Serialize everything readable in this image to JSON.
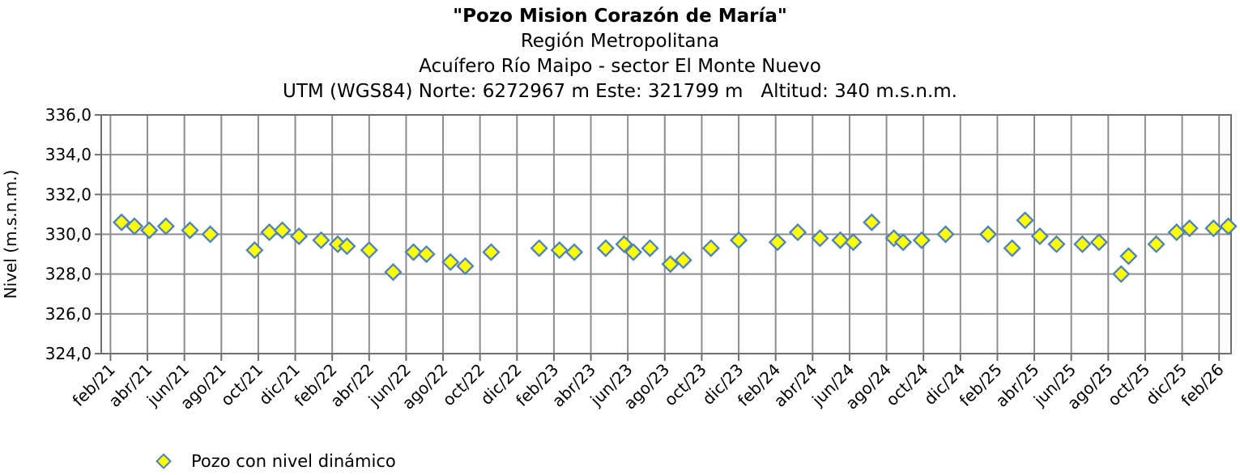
{
  "colors": {
    "background": "#ffffff",
    "text": "#000000",
    "marker_fill": "#ffff00",
    "marker_stroke": "#4f81bd",
    "grid": "#8e8e8e",
    "axis": "#6f6f6f"
  },
  "chart_data": {
    "type": "scatter",
    "title": "\"Pozo Mision Corazón de María\"",
    "subtitles": [
      "Región Metropolitana",
      "Acuífero Río Maipo - sector El Monte Nuevo",
      "UTM (WGS84) Norte: 6272967 m Este: 321799 m   Altitud: 340 m.s.n.m."
    ],
    "xlabel": "",
    "ylabel": "Nivel (m.s.n.m.)",
    "ylim": [
      324.0,
      336.0
    ],
    "y_tick_step": 2.0,
    "y_ticks": [
      {
        "v": 336.0,
        "label": "336,0"
      },
      {
        "v": 334.0,
        "label": "334,0"
      },
      {
        "v": 332.0,
        "label": "332,0"
      },
      {
        "v": 330.0,
        "label": "330,0"
      },
      {
        "v": 328.0,
        "label": "328,0"
      },
      {
        "v": 326.0,
        "label": "326,0"
      },
      {
        "v": 324.0,
        "label": "324,0"
      }
    ],
    "x_tick_interval_months": 2,
    "x_tick_labels": [
      "feb/21",
      "abr/21",
      "jun/21",
      "ago/21",
      "oct/21",
      "dic/21",
      "feb/22",
      "abr/22",
      "jun/22",
      "ago/22",
      "oct/22",
      "dic/22",
      "feb/23",
      "abr/23",
      "jun/23",
      "ago/23",
      "oct/23",
      "dic/23",
      "feb/24",
      "abr/24",
      "jun/24",
      "ago/24",
      "oct/24",
      "dic/24",
      "feb/25",
      "abr/25",
      "jun/25",
      "ago/25",
      "oct/25",
      "dic/25",
      "feb/26"
    ],
    "grid": true,
    "legend": {
      "label": "Pozo con nivel dinámico",
      "marker": "diamond",
      "position": "bottom-left"
    },
    "point_format": "[months_since_feb_2021, nivel_msnm]",
    "series": [
      {
        "name": "Pozo con nivel dinámico",
        "marker": "diamond",
        "points": [
          [
            0.6,
            330.6
          ],
          [
            1.3,
            330.4
          ],
          [
            2.1,
            330.2
          ],
          [
            3.0,
            330.4
          ],
          [
            4.3,
            330.2
          ],
          [
            5.4,
            330.0
          ],
          [
            7.8,
            329.2
          ],
          [
            8.6,
            330.1
          ],
          [
            9.3,
            330.2
          ],
          [
            10.2,
            329.9
          ],
          [
            11.4,
            329.7
          ],
          [
            12.3,
            329.5
          ],
          [
            12.8,
            329.4
          ],
          [
            14.0,
            329.2
          ],
          [
            15.3,
            328.1
          ],
          [
            16.4,
            329.1
          ],
          [
            17.1,
            329.0
          ],
          [
            18.4,
            328.6
          ],
          [
            19.2,
            328.4
          ],
          [
            20.6,
            329.1
          ],
          [
            23.2,
            329.3
          ],
          [
            24.3,
            329.2
          ],
          [
            25.1,
            329.1
          ],
          [
            26.8,
            329.3
          ],
          [
            27.8,
            329.5
          ],
          [
            28.3,
            329.1
          ],
          [
            29.2,
            329.3
          ],
          [
            30.3,
            328.5
          ],
          [
            31.0,
            328.7
          ],
          [
            32.5,
            329.3
          ],
          [
            34.0,
            329.7
          ],
          [
            36.1,
            329.6
          ],
          [
            37.2,
            330.1
          ],
          [
            38.4,
            329.8
          ],
          [
            39.5,
            329.7
          ],
          [
            40.2,
            329.6
          ],
          [
            41.2,
            330.6
          ],
          [
            42.4,
            329.8
          ],
          [
            42.9,
            329.6
          ],
          [
            43.9,
            329.7
          ],
          [
            45.2,
            330.0
          ],
          [
            47.5,
            330.0
          ],
          [
            48.8,
            329.3
          ],
          [
            49.5,
            330.7
          ],
          [
            50.3,
            329.9
          ],
          [
            51.2,
            329.5
          ],
          [
            52.6,
            329.5
          ],
          [
            53.5,
            329.6
          ],
          [
            54.7,
            328.0
          ],
          [
            55.1,
            328.9
          ],
          [
            56.6,
            329.5
          ],
          [
            57.7,
            330.1
          ],
          [
            58.4,
            330.3
          ],
          [
            59.7,
            330.3
          ],
          [
            60.5,
            330.4
          ]
        ]
      }
    ]
  }
}
